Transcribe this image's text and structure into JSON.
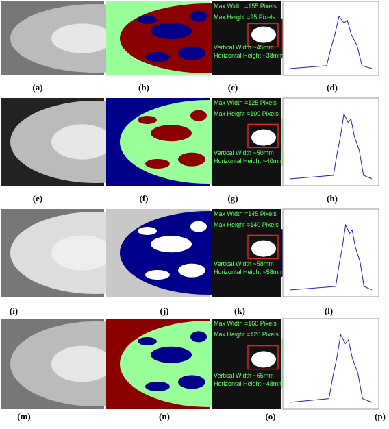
{
  "rows": [
    {
      "labels": [
        "(a)",
        "(b)",
        "(c)",
        "(d)"
      ],
      "text": [
        "Max Width =155 Pixels",
        "Max Height =95 Pixels",
        "Vertical Width ~45mm",
        "Horizontal Height ~38mm"
      ]
    },
    {
      "labels": [
        "(e)",
        "(f)",
        "(g)",
        "(h)"
      ],
      "text": [
        "Max Width =125 Pixels",
        "Max Height =100 Pixels",
        "Vertical Width ~50mm",
        "Horizontal Height ~40mm"
      ]
    },
    {
      "labels": [
        "(i)",
        "(j)",
        "(k)",
        "(l)"
      ],
      "text": [
        "Max Width =145 Pixels",
        "Max Height =140 Pixels",
        "Vertical Width ~58mm",
        "Horizontal Height ~58mm"
      ]
    },
    {
      "labels": [
        "(m)",
        "(n)",
        "(o)",
        "(p)"
      ],
      "text": [
        "Max Width =160 Pixels",
        "Max Height =120 Pixels",
        "Vertical Width ~65mm",
        "Horizontal Height ~48mm"
      ]
    }
  ]
}
